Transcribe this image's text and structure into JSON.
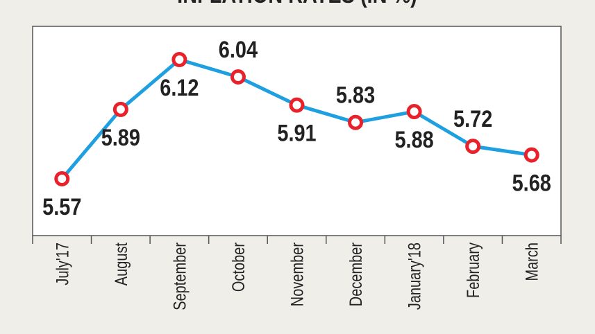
{
  "chart_data": {
    "type": "line",
    "title": "INFLATION RATES (IN %)",
    "categories": [
      "July'17",
      "August",
      "September",
      "October",
      "November",
      "December",
      "January'18",
      "February",
      "March"
    ],
    "series": [
      {
        "name": "Inflation rate",
        "color": "#1e9fe0",
        "marker_color": "#e8212b",
        "values": [
          5.57,
          5.89,
          6.12,
          6.04,
          5.91,
          5.83,
          5.88,
          5.72,
          5.68
        ]
      }
    ]
  }
}
